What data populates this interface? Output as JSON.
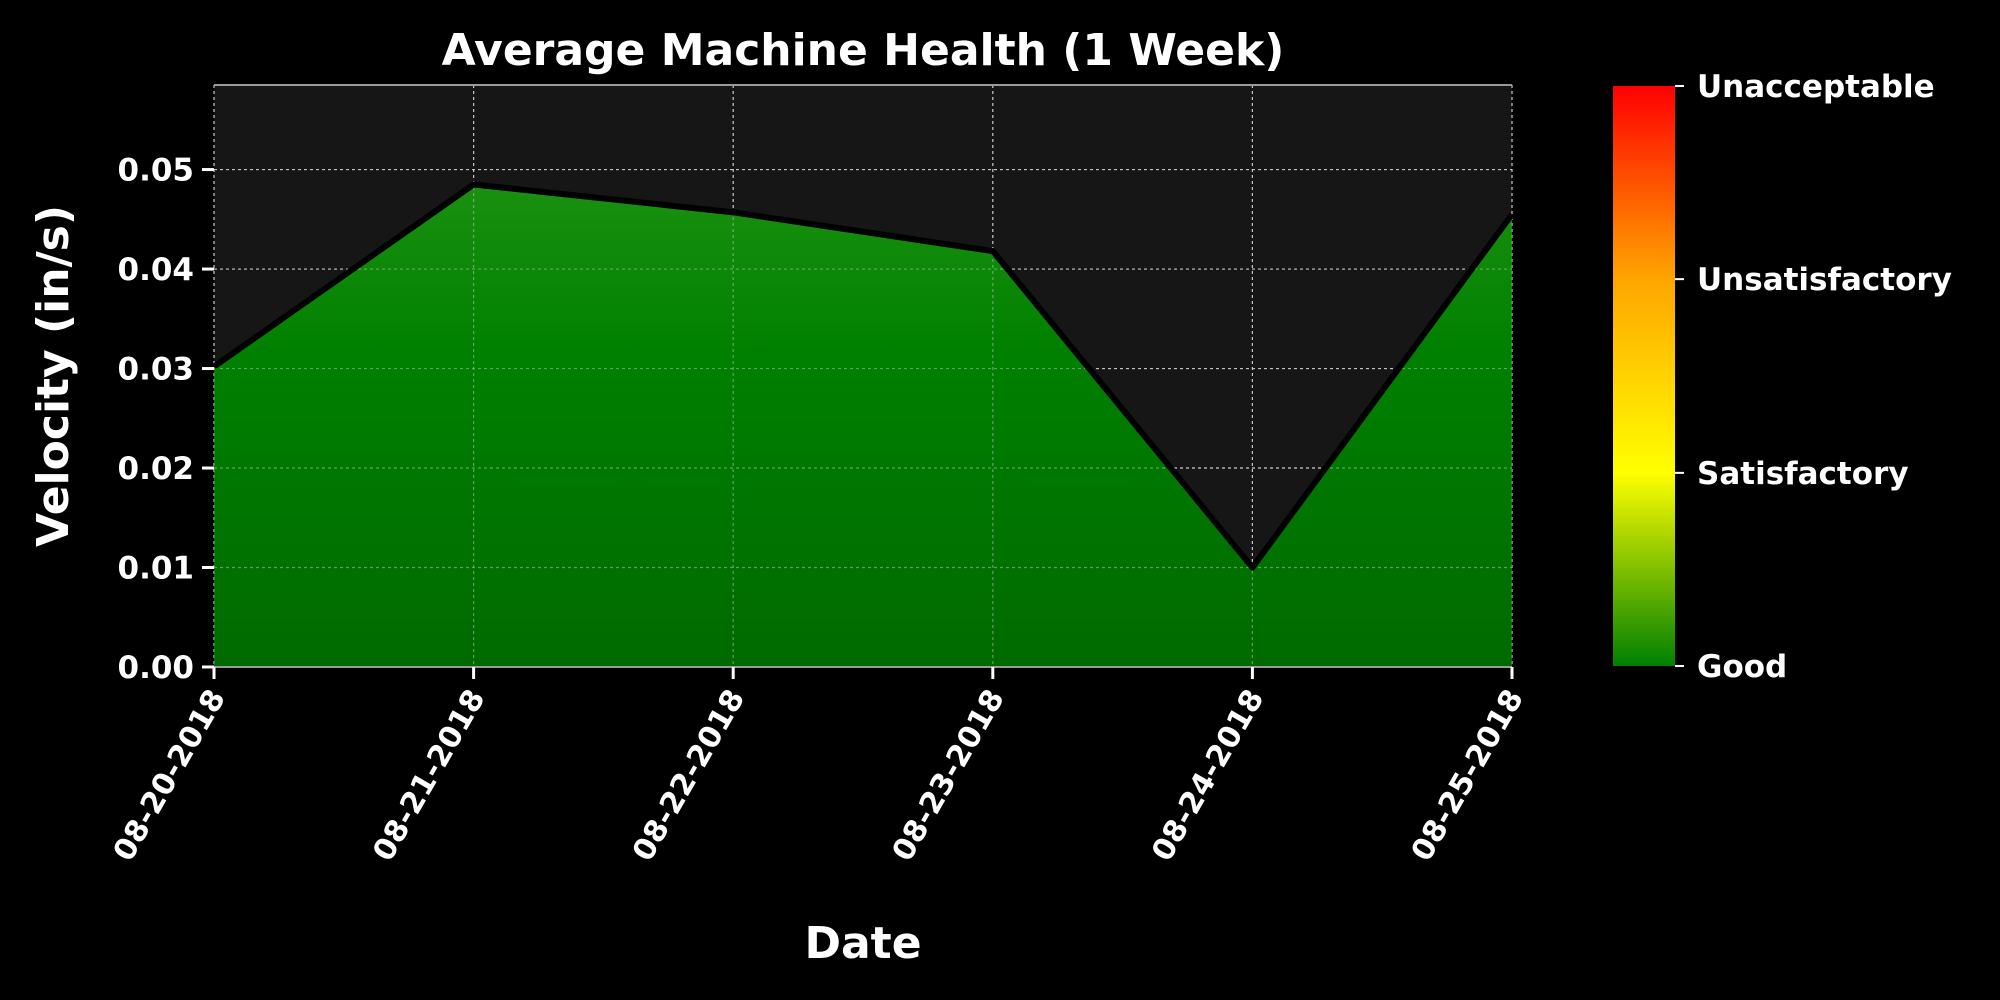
{
  "chart_data": {
    "type": "area",
    "title": "Average Machine Health (1 Week)",
    "xlabel": "Date",
    "ylabel": "Velocity (in/s)",
    "x": [
      "08-20-2018",
      "08-21-2018",
      "08-22-2018",
      "08-23-2018",
      "08-24-2018",
      "08-25-2018"
    ],
    "series": [
      {
        "values": [
          0.0302,
          0.0485,
          0.0457,
          0.0418,
          0.01,
          0.0455
        ]
      }
    ],
    "ylim": [
      0,
      0.0585
    ],
    "yticks": [
      0.0,
      0.01,
      0.02,
      0.03,
      0.04,
      0.05
    ],
    "ytick_labels": [
      "0.00",
      "0.01",
      "0.02",
      "0.03",
      "0.04",
      "0.05"
    ],
    "grid": true,
    "colors": {
      "background": "#000000",
      "plot_area": "#161616",
      "fill": "#008000",
      "line": "#000000"
    },
    "colorbar": {
      "labels": [
        "Unacceptable",
        "Unsatisfactory",
        "Satisfactory",
        "Good"
      ],
      "levels": [
        1.0,
        0.667,
        0.333,
        0.0
      ],
      "colors": [
        "#ff0000",
        "#ffa500",
        "#ffff00",
        "#008000"
      ]
    }
  }
}
